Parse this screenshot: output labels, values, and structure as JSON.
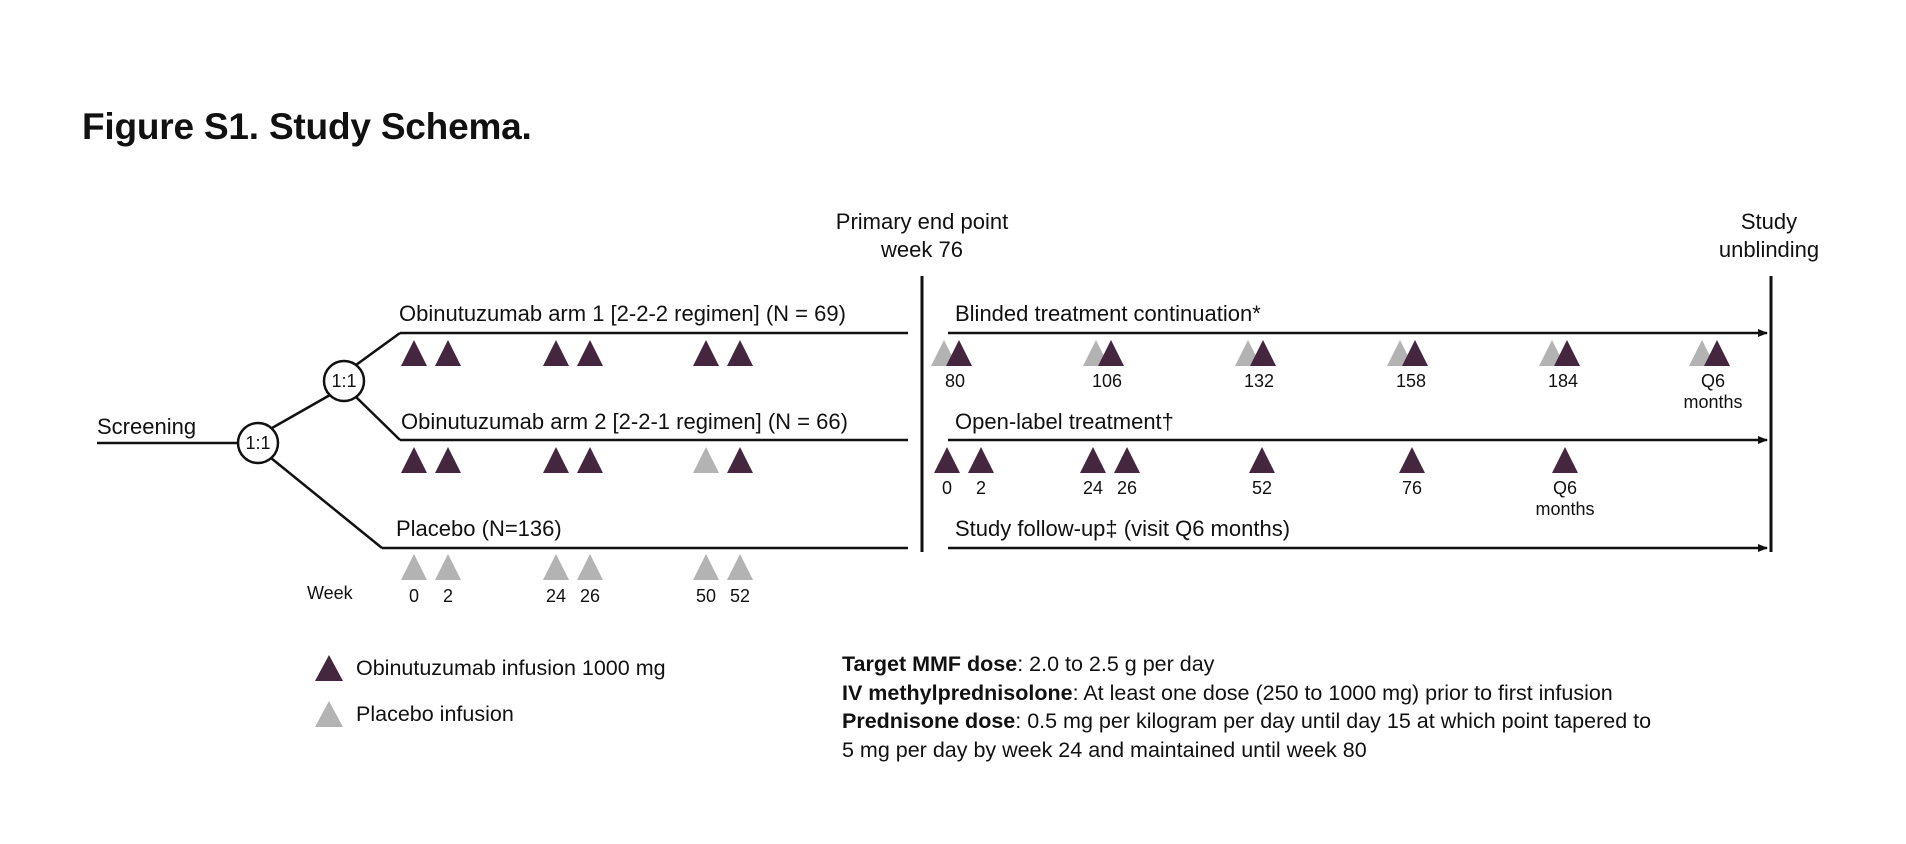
{
  "title": "Figure S1. Study Schema.",
  "screening": "Screening",
  "randomization_1": "1:1",
  "randomization_2": "1:1",
  "arms": [
    {
      "label": "Obinutuzumab arm 1 [2-2-2 regimen] (N = 69)",
      "infusions": [
        "obinutuzumab",
        "obinutuzumab",
        "obinutuzumab",
        "obinutuzumab",
        "obinutuzumab",
        "obinutuzumab"
      ]
    },
    {
      "label": "Obinutuzumab arm 2 [2-2-1 regimen] (N = 66)",
      "infusions": [
        "obinutuzumab",
        "obinutuzumab",
        "obinutuzumab",
        "obinutuzumab",
        "placebo",
        "obinutuzumab"
      ]
    },
    {
      "label": "Placebo (N=136)",
      "infusions": [
        "placebo",
        "placebo",
        "placebo",
        "placebo",
        "placebo",
        "placebo"
      ]
    }
  ],
  "week_label": "Week",
  "weeks": [
    "0",
    "2",
    "24",
    "26",
    "50",
    "52"
  ],
  "primary_endpoint": {
    "line1": "Primary end point",
    "line2": "week 76"
  },
  "unblinding": {
    "line1": "Study",
    "line2": "unblinding"
  },
  "extension": [
    {
      "label": "Blinded treatment continuation*",
      "visits": [
        {
          "l1": "80",
          "l2": ""
        },
        {
          "l1": "106",
          "l2": ""
        },
        {
          "l1": "132",
          "l2": ""
        },
        {
          "l1": "158",
          "l2": ""
        },
        {
          "l1": "184",
          "l2": ""
        },
        {
          "l1": "Q6",
          "l2": "months"
        }
      ],
      "marker": "both"
    },
    {
      "label": "Open-label treatment†",
      "visits": [
        {
          "l1": "0",
          "l2": ""
        },
        {
          "l1": "2",
          "l2": ""
        },
        {
          "l1": "24",
          "l2": ""
        },
        {
          "l1": "26",
          "l2": ""
        },
        {
          "l1": "52",
          "l2": ""
        },
        {
          "l1": "76",
          "l2": ""
        },
        {
          "l1": "Q6",
          "l2": "months"
        }
      ],
      "marker": "obinutuzumab"
    },
    {
      "label": "Study follow-up‡ (visit Q6 months)",
      "visits": [],
      "marker": "none"
    }
  ],
  "legend": [
    {
      "icon": "obinutuzumab-triangle",
      "color": "#45263f",
      "label": "Obinutuzumab infusion 1000 mg"
    },
    {
      "icon": "placebo-triangle",
      "color": "#b3b3b3",
      "label": "Placebo infusion"
    }
  ],
  "notes": [
    {
      "bold": "Target MMF dose",
      "text": ": 2.0 to 2.5 g per day"
    },
    {
      "bold": "IV methylprednisolone",
      "text": ": At least one dose (250 to 1000 mg) prior to first infusion"
    },
    {
      "bold": "Prednisone dose",
      "text": ": 0.5 mg per kilogram per day until day 15 at which point tapered to"
    },
    {
      "bold": "",
      "text": "5 mg per day by week 24 and maintained until week 80"
    }
  ],
  "colors": {
    "obinutuzumab": "#45263f",
    "placebo": "#b3b3b3",
    "line": "#111111"
  }
}
